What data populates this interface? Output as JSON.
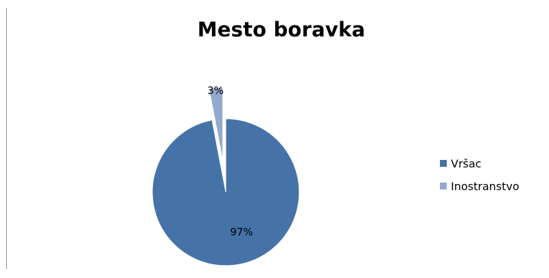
{
  "chart_data": {
    "type": "pie",
    "title": "Mesto boravka",
    "categories": [
      "Vršac",
      "Inostranstvo"
    ],
    "values": [
      97,
      3
    ],
    "labels": [
      "97%",
      "3%"
    ],
    "colors": [
      "#4572A7",
      "#93A9CF"
    ],
    "exploded": [
      false,
      true
    ],
    "legend_position": "right"
  }
}
